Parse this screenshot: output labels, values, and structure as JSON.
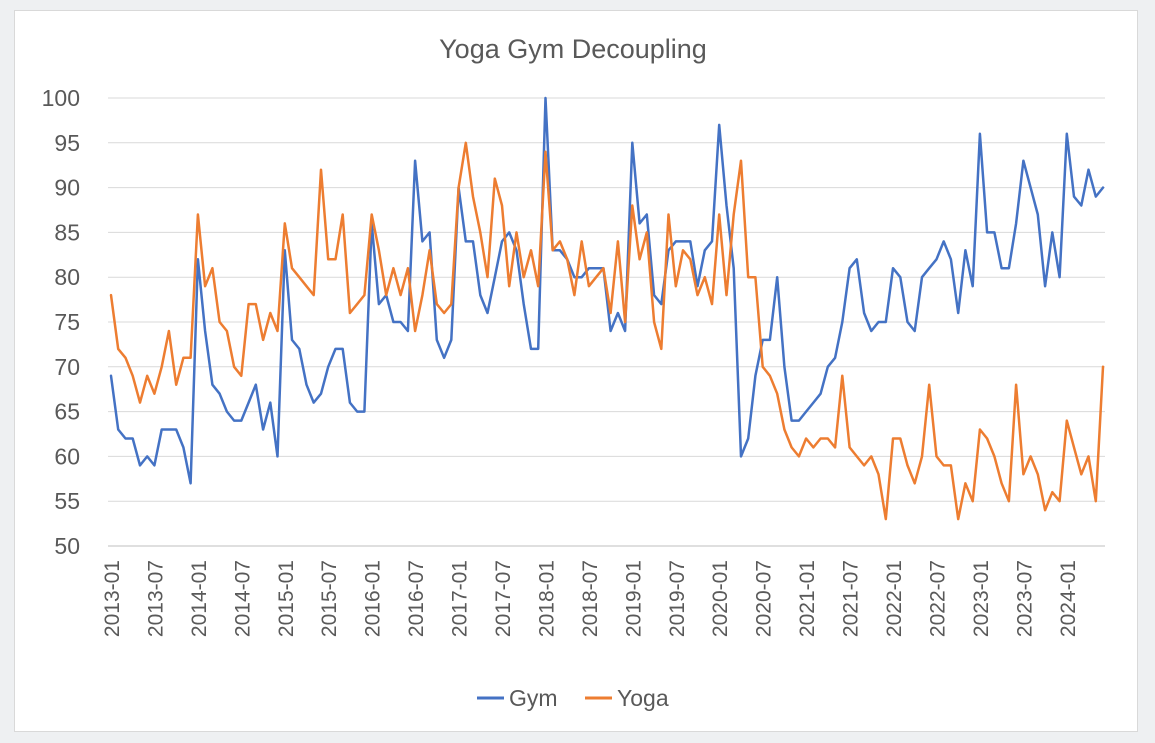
{
  "chart_data": {
    "type": "line",
    "title": "Yoga Gym Decoupling",
    "xlabel": "",
    "ylabel": "",
    "ylim": [
      50,
      100
    ],
    "y_ticks": [
      50,
      55,
      60,
      65,
      70,
      75,
      80,
      85,
      90,
      95,
      100
    ],
    "grid": "horizontal",
    "legend_position": "bottom",
    "x_tick_labels": [
      "2013-01",
      "2013-07",
      "2014-01",
      "2014-07",
      "2015-01",
      "2015-07",
      "2016-01",
      "2016-07",
      "2017-01",
      "2017-07",
      "2018-01",
      "2018-07",
      "2019-01",
      "2019-07",
      "2020-01",
      "2020-07",
      "2021-01",
      "2021-07",
      "2022-01",
      "2022-07",
      "2023-01",
      "2023-07",
      "2024-01"
    ],
    "x_start": "2013-01",
    "series": [
      {
        "name": "Gym",
        "color": "#4472C4",
        "values": [
          69,
          63,
          62,
          62,
          59,
          60,
          59,
          63,
          63,
          63,
          61,
          57,
          82,
          74,
          68,
          67,
          65,
          64,
          64,
          66,
          68,
          63,
          66,
          60,
          83,
          73,
          72,
          68,
          66,
          67,
          70,
          72,
          72,
          66,
          65,
          65,
          86,
          77,
          78,
          75,
          75,
          74,
          93,
          84,
          85,
          73,
          71,
          73,
          90,
          84,
          84,
          78,
          76,
          80,
          84,
          85,
          83,
          77,
          72,
          72,
          100,
          83,
          83,
          82,
          80,
          80,
          81,
          81,
          81,
          74,
          76,
          74,
          95,
          86,
          87,
          78,
          77,
          83,
          84,
          84,
          84,
          79,
          83,
          84,
          97,
          88,
          81,
          60,
          62,
          69,
          73,
          73,
          80,
          70,
          64,
          64,
          65,
          66,
          67,
          70,
          71,
          75,
          81,
          82,
          76,
          74,
          75,
          75,
          81,
          80,
          75,
          74,
          80,
          81,
          82,
          84,
          82,
          76,
          83,
          79,
          96,
          85,
          85,
          81,
          81,
          86,
          93,
          90,
          87,
          79,
          85,
          80,
          96,
          89,
          88,
          92,
          89,
          90
        ]
      },
      {
        "name": "Yoga",
        "color": "#ED7D31",
        "values": [
          78,
          72,
          71,
          69,
          66,
          69,
          67,
          70,
          74,
          68,
          71,
          71,
          87,
          79,
          81,
          75,
          74,
          70,
          69,
          77,
          77,
          73,
          76,
          74,
          86,
          81,
          80,
          79,
          78,
          92,
          82,
          82,
          87,
          76,
          77,
          78,
          87,
          83,
          78,
          81,
          78,
          81,
          74,
          78,
          83,
          77,
          76,
          77,
          90,
          95,
          89,
          85,
          80,
          91,
          88,
          79,
          85,
          80,
          83,
          79,
          94,
          83,
          84,
          82,
          78,
          84,
          79,
          80,
          81,
          76,
          84,
          75,
          88,
          82,
          85,
          75,
          72,
          87,
          79,
          83,
          82,
          78,
          80,
          77,
          87,
          78,
          87,
          93,
          80,
          80,
          70,
          69,
          67,
          63,
          61,
          60,
          62,
          61,
          62,
          62,
          61,
          69,
          61,
          60,
          59,
          60,
          58,
          53,
          62,
          62,
          59,
          57,
          60,
          68,
          60,
          59,
          59,
          53,
          57,
          55,
          63,
          62,
          60,
          57,
          55,
          68,
          58,
          60,
          58,
          54,
          56,
          55,
          64,
          61,
          58,
          60,
          55,
          70
        ]
      }
    ]
  }
}
